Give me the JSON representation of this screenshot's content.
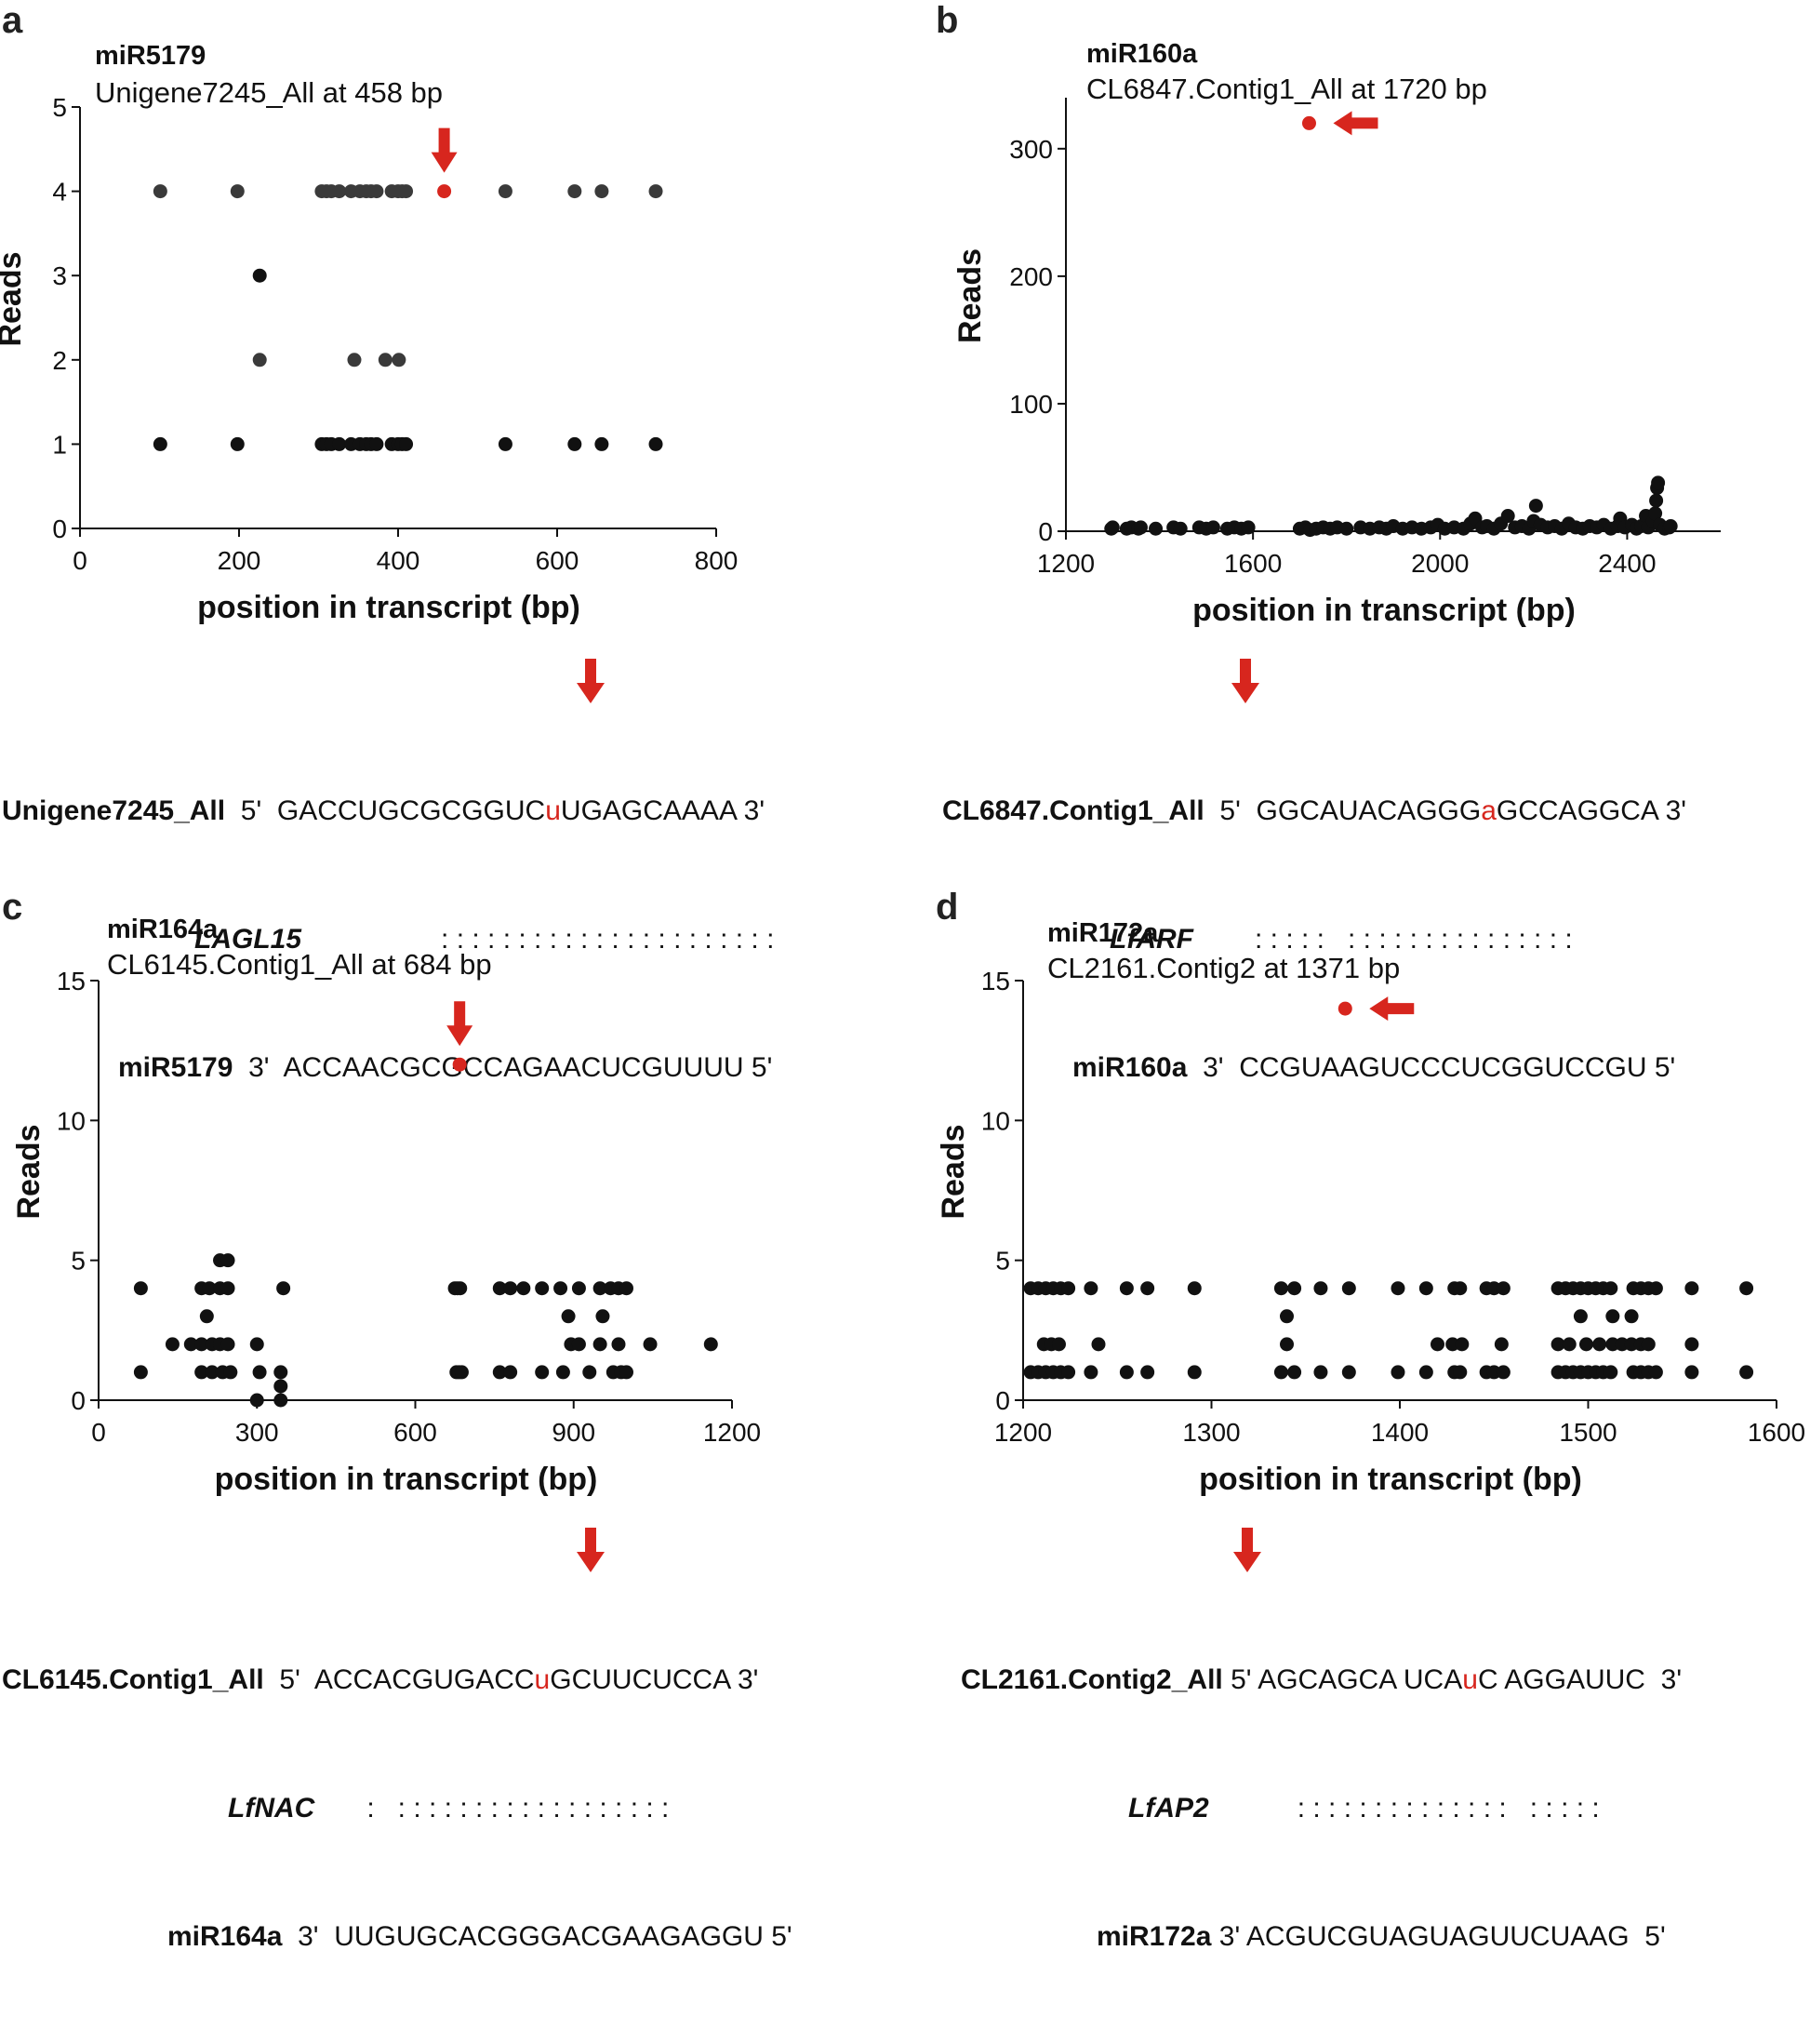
{
  "colors": {
    "dot": "#111111",
    "dot_grey": "#3a3a3a",
    "highlight": "#d7261e",
    "axis": "#111111"
  },
  "panels": [
    {
      "id": "a",
      "mirna": "miR5179",
      "subtitle": "Unigene7245_All at 458 bp",
      "alignment": {
        "target_label": "Unigene7245_All",
        "target_5": "5'",
        "target_pre": "GACCUGCGCGGUC",
        "target_site": "u",
        "target_post": "UGAGCAAAA",
        "target_3": "3'",
        "gene": "LAGL15",
        "match": ": : : : : : : : : : : : : : : : : : : : : :",
        "mir_label": "miR5179",
        "mir_3": "3'",
        "mir_seq": "ACCAACGCGCCAGAACUCGUUUU",
        "mir_5": "5'"
      }
    },
    {
      "id": "b",
      "mirna": "miR160a",
      "subtitle": "CL6847.Contig1_All at 1720 bp",
      "alignment": {
        "target_label": "CL6847.Contig1_All",
        "target_5": "5'",
        "target_pre": "GGCAUACAGGG",
        "target_site": "a",
        "target_post": "GCCAGGCA",
        "target_3": "3'",
        "gene": "LfARF",
        "match": ": : : : :   : : : : : : : : : : : : : : :",
        "mir_label": "miR160a",
        "mir_3": "3'",
        "mir_seq": "CCGUAAGUCCCUCGGUCCGU",
        "mir_5": "5'"
      }
    },
    {
      "id": "c",
      "mirna": "miR164a",
      "subtitle": "CL6145.Contig1_All at 684 bp",
      "alignment": {
        "target_label": "CL6145.Contig1_All",
        "target_5": "5'",
        "target_pre": "ACCACGUGACC",
        "target_site": "u",
        "target_post": "GCUUCUCCA",
        "target_3": "3'",
        "gene": "LfNAC",
        "match": ":   : : : : : : : : : : : : : : : : : :",
        "mir_label": "miR164a",
        "mir_3": "3'",
        "mir_seq": "UUGUGCACGGGACGAAGAGGU",
        "mir_5": "5'"
      }
    },
    {
      "id": "d",
      "mirna": "miR172a",
      "subtitle": "CL2161.Contig2 at 1371 bp",
      "alignment": {
        "target_label": "CL2161.Contig2_All",
        "target_5": "5'",
        "target_pre": "AGCAGCA UCA",
        "target_site": "u",
        "target_post": "C AGGAUUC",
        "target_3": "3'",
        "gene": "LfAP2",
        "match": ": : : : : : : : : : : : : :   : : : : :",
        "mir_label": "miR172a",
        "mir_3": "3'",
        "mir_seq": "ACGUCGUAGUAGUUCUAAG",
        "mir_5": "5'"
      }
    }
  ],
  "chart_data": [
    {
      "type": "scatter",
      "panel": "a",
      "xlabel": "position in transcript (bp)",
      "ylabel": "Reads",
      "xlim": [
        0,
        800
      ],
      "ylim": [
        0,
        5
      ],
      "xticks": [
        0,
        200,
        400,
        600,
        800
      ],
      "yticks": [
        0,
        1,
        2,
        3,
        4,
        5
      ],
      "highlight": {
        "x": 458,
        "y": 4
      },
      "points": [
        [
          101,
          4
        ],
        [
          198,
          4
        ],
        [
          304,
          4
        ],
        [
          310,
          4
        ],
        [
          316,
          4
        ],
        [
          326,
          4
        ],
        [
          341,
          4
        ],
        [
          352,
          4
        ],
        [
          360,
          4
        ],
        [
          366,
          4
        ],
        [
          373,
          4
        ],
        [
          392,
          4
        ],
        [
          400,
          4
        ],
        [
          405,
          4
        ],
        [
          410,
          4
        ],
        [
          535,
          4
        ],
        [
          622,
          4
        ],
        [
          656,
          4
        ],
        [
          724,
          4
        ],
        [
          226,
          3
        ],
        [
          226,
          2
        ],
        [
          345,
          2
        ],
        [
          384,
          2
        ],
        [
          401,
          2
        ],
        [
          101,
          1
        ],
        [
          198,
          1
        ],
        [
          304,
          1
        ],
        [
          310,
          1
        ],
        [
          316,
          1
        ],
        [
          326,
          1
        ],
        [
          341,
          1
        ],
        [
          352,
          1
        ],
        [
          360,
          1
        ],
        [
          366,
          1
        ],
        [
          373,
          1
        ],
        [
          392,
          1
        ],
        [
          400,
          1
        ],
        [
          405,
          1
        ],
        [
          410,
          1
        ],
        [
          535,
          1
        ],
        [
          622,
          1
        ],
        [
          656,
          1
        ],
        [
          724,
          1
        ]
      ]
    },
    {
      "type": "scatter",
      "panel": "b",
      "xlabel": "position in transcript (bp)",
      "ylabel": "Reads",
      "xlim": [
        1200,
        2600
      ],
      "ylim": [
        0,
        340
      ],
      "xticks": [
        1200,
        1600,
        2000,
        2400
      ],
      "yticks": [
        0,
        100,
        200,
        300
      ],
      "highlight": {
        "x": 1720,
        "y": 320
      },
      "points": [
        [
          1297,
          2
        ],
        [
          1300,
          3
        ],
        [
          1330,
          2
        ],
        [
          1340,
          3
        ],
        [
          1355,
          2
        ],
        [
          1360,
          3
        ],
        [
          1392,
          2
        ],
        [
          1430,
          3
        ],
        [
          1445,
          2
        ],
        [
          1485,
          3
        ],
        [
          1500,
          2
        ],
        [
          1515,
          3
        ],
        [
          1545,
          2
        ],
        [
          1560,
          3
        ],
        [
          1575,
          2
        ],
        [
          1590,
          3
        ],
        [
          1700,
          2
        ],
        [
          1712,
          3
        ],
        [
          1722,
          1
        ],
        [
          1735,
          2
        ],
        [
          1750,
          3
        ],
        [
          1765,
          2
        ],
        [
          1780,
          3
        ],
        [
          1800,
          2
        ],
        [
          1830,
          3
        ],
        [
          1850,
          2
        ],
        [
          1870,
          3
        ],
        [
          1885,
          2
        ],
        [
          1900,
          4
        ],
        [
          1920,
          2
        ],
        [
          1940,
          3
        ],
        [
          1960,
          2
        ],
        [
          1980,
          3
        ],
        [
          1995,
          5
        ],
        [
          2010,
          2
        ],
        [
          2030,
          3
        ],
        [
          2050,
          2
        ],
        [
          2065,
          6
        ],
        [
          2075,
          10
        ],
        [
          2090,
          3
        ],
        [
          2100,
          4
        ],
        [
          2115,
          2
        ],
        [
          2130,
          6
        ],
        [
          2145,
          12
        ],
        [
          2160,
          3
        ],
        [
          2175,
          4
        ],
        [
          2190,
          2
        ],
        [
          2200,
          8
        ],
        [
          2205,
          20
        ],
        [
          2215,
          5
        ],
        [
          2230,
          3
        ],
        [
          2245,
          4
        ],
        [
          2260,
          2
        ],
        [
          2275,
          6
        ],
        [
          2290,
          3
        ],
        [
          2305,
          2
        ],
        [
          2320,
          4
        ],
        [
          2335,
          3
        ],
        [
          2350,
          5
        ],
        [
          2365,
          2
        ],
        [
          2380,
          4
        ],
        [
          2385,
          10
        ],
        [
          2395,
          3
        ],
        [
          2410,
          5
        ],
        [
          2420,
          2
        ],
        [
          2430,
          4
        ],
        [
          2440,
          12
        ],
        [
          2445,
          3
        ],
        [
          2455,
          8
        ],
        [
          2460,
          14
        ],
        [
          2462,
          24
        ],
        [
          2464,
          34
        ],
        [
          2466,
          38
        ],
        [
          2470,
          5
        ],
        [
          2480,
          2
        ],
        [
          2490,
          3
        ],
        [
          2493,
          4
        ]
      ]
    },
    {
      "type": "scatter",
      "panel": "c",
      "xlabel": "position in transcript (bp)",
      "ylabel": "Reads",
      "xlim": [
        0,
        1200
      ],
      "ylim": [
        0,
        15
      ],
      "xticks": [
        0,
        300,
        600,
        900,
        1200
      ],
      "yticks": [
        0,
        5,
        10,
        15
      ],
      "highlight": {
        "x": 684,
        "y": 12
      },
      "points": [
        [
          80,
          4
        ],
        [
          80,
          1
        ],
        [
          140,
          2
        ],
        [
          175,
          2
        ],
        [
          195,
          4
        ],
        [
          195,
          2
        ],
        [
          195,
          1
        ],
        [
          205,
          3
        ],
        [
          210,
          4
        ],
        [
          215,
          2
        ],
        [
          215,
          1
        ],
        [
          230,
          5
        ],
        [
          230,
          4
        ],
        [
          230,
          2
        ],
        [
          235,
          1
        ],
        [
          245,
          5
        ],
        [
          245,
          4
        ],
        [
          245,
          2
        ],
        [
          250,
          1
        ],
        [
          300,
          2
        ],
        [
          305,
          1
        ],
        [
          300,
          0
        ],
        [
          350,
          4
        ],
        [
          345,
          1
        ],
        [
          345,
          0.5
        ],
        [
          345,
          0
        ],
        [
          675,
          4
        ],
        [
          680,
          4
        ],
        [
          685,
          4
        ],
        [
          678,
          1
        ],
        [
          683,
          1
        ],
        [
          688,
          1
        ],
        [
          760,
          4
        ],
        [
          760,
          1
        ],
        [
          780,
          4
        ],
        [
          780,
          1
        ],
        [
          805,
          4
        ],
        [
          840,
          4
        ],
        [
          840,
          1
        ],
        [
          875,
          4
        ],
        [
          880,
          1
        ],
        [
          890,
          3
        ],
        [
          895,
          2
        ],
        [
          910,
          4
        ],
        [
          910,
          2
        ],
        [
          930,
          1
        ],
        [
          950,
          4
        ],
        [
          950,
          2
        ],
        [
          955,
          3
        ],
        [
          970,
          4
        ],
        [
          975,
          1
        ],
        [
          985,
          4
        ],
        [
          985,
          2
        ],
        [
          990,
          1
        ],
        [
          1000,
          4
        ],
        [
          1000,
          1
        ],
        [
          1045,
          2
        ],
        [
          1160,
          2
        ]
      ]
    },
    {
      "type": "scatter",
      "panel": "d",
      "xlabel": "position in transcript (bp)",
      "ylabel": "Reads",
      "xlim": [
        1200,
        1600
      ],
      "ylim": [
        0,
        15
      ],
      "xticks": [
        1200,
        1300,
        1400,
        1500,
        1600
      ],
      "yticks": [
        0,
        5,
        10,
        15
      ],
      "highlight": {
        "x": 1371,
        "y": 14
      },
      "points": [
        [
          1204,
          4
        ],
        [
          1208,
          4
        ],
        [
          1212,
          4
        ],
        [
          1216,
          4
        ],
        [
          1220,
          4
        ],
        [
          1224,
          4
        ],
        [
          1236,
          4
        ],
        [
          1255,
          4
        ],
        [
          1266,
          4
        ],
        [
          1291,
          4
        ],
        [
          1337,
          4
        ],
        [
          1344,
          4
        ],
        [
          1358,
          4
        ],
        [
          1373,
          4
        ],
        [
          1399,
          4
        ],
        [
          1414,
          4
        ],
        [
          1429,
          4
        ],
        [
          1432,
          4
        ],
        [
          1446,
          4
        ],
        [
          1450,
          4
        ],
        [
          1455,
          4
        ],
        [
          1484,
          4
        ],
        [
          1488,
          4
        ],
        [
          1492,
          4
        ],
        [
          1496,
          4
        ],
        [
          1500,
          4
        ],
        [
          1504,
          4
        ],
        [
          1508,
          4
        ],
        [
          1512,
          4
        ],
        [
          1524,
          4
        ],
        [
          1528,
          4
        ],
        [
          1532,
          4
        ],
        [
          1536,
          4
        ],
        [
          1555,
          4
        ],
        [
          1584,
          4
        ],
        [
          1340,
          3
        ],
        [
          1496,
          3
        ],
        [
          1513,
          3
        ],
        [
          1523,
          3
        ],
        [
          1211,
          2
        ],
        [
          1215,
          2
        ],
        [
          1219,
          2
        ],
        [
          1240,
          2
        ],
        [
          1340,
          2
        ],
        [
          1420,
          2
        ],
        [
          1428,
          2
        ],
        [
          1433,
          2
        ],
        [
          1454,
          2
        ],
        [
          1484,
          2
        ],
        [
          1490,
          2
        ],
        [
          1499,
          2
        ],
        [
          1506,
          2
        ],
        [
          1513,
          2
        ],
        [
          1518,
          2
        ],
        [
          1523,
          2
        ],
        [
          1528,
          2
        ],
        [
          1532,
          2
        ],
        [
          1555,
          2
        ],
        [
          1204,
          1
        ],
        [
          1208,
          1
        ],
        [
          1212,
          1
        ],
        [
          1216,
          1
        ],
        [
          1220,
          1
        ],
        [
          1224,
          1
        ],
        [
          1236,
          1
        ],
        [
          1255,
          1
        ],
        [
          1266,
          1
        ],
        [
          1291,
          1
        ],
        [
          1337,
          1
        ],
        [
          1344,
          1
        ],
        [
          1358,
          1
        ],
        [
          1373,
          1
        ],
        [
          1399,
          1
        ],
        [
          1414,
          1
        ],
        [
          1429,
          1
        ],
        [
          1432,
          1
        ],
        [
          1446,
          1
        ],
        [
          1450,
          1
        ],
        [
          1455,
          1
        ],
        [
          1484,
          1
        ],
        [
          1488,
          1
        ],
        [
          1492,
          1
        ],
        [
          1496,
          1
        ],
        [
          1500,
          1
        ],
        [
          1504,
          1
        ],
        [
          1508,
          1
        ],
        [
          1512,
          1
        ],
        [
          1524,
          1
        ],
        [
          1528,
          1
        ],
        [
          1532,
          1
        ],
        [
          1536,
          1
        ],
        [
          1555,
          1
        ],
        [
          1584,
          1
        ]
      ]
    }
  ]
}
